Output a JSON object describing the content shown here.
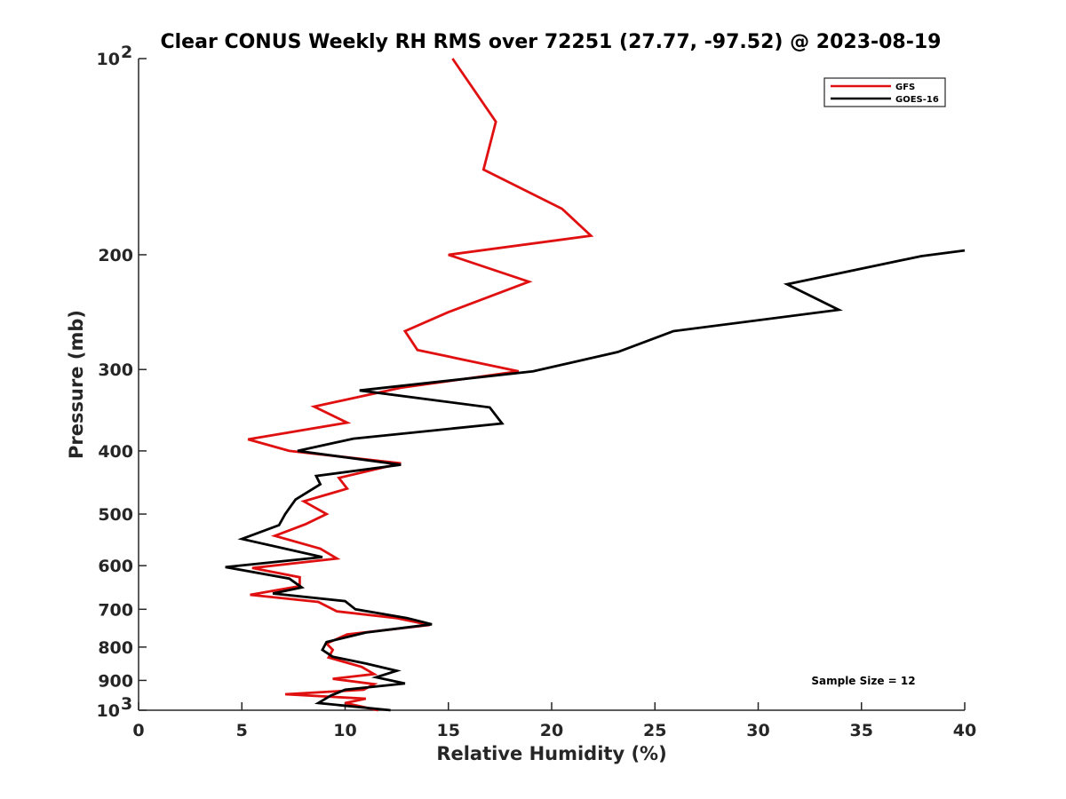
{
  "chart_data": {
    "type": "line",
    "title": "Clear CONUS Weekly RH RMS over 72251 (27.77, -97.52) @ 2023-08-19",
    "xlabel": "Relative Humidity (%)",
    "ylabel": "Pressure (mb)",
    "xlim": [
      0,
      40
    ],
    "ylim": [
      100,
      1000
    ],
    "y_scale": "log",
    "y_reversed": true,
    "grid": false,
    "legend_position": "top-right",
    "annotation": "Sample Size = 12",
    "x_ticks": [
      "0",
      "5",
      "10",
      "15",
      "20",
      "25",
      "30",
      "35",
      "40"
    ],
    "x_tick_values": [
      0,
      5,
      10,
      15,
      20,
      25,
      30,
      35,
      40
    ],
    "y_ticks": [
      {
        "value": 100,
        "label": "10",
        "exp": "2"
      },
      {
        "value": 200,
        "label": "200"
      },
      {
        "value": 300,
        "label": "300"
      },
      {
        "value": 400,
        "label": "400"
      },
      {
        "value": 500,
        "label": "500"
      },
      {
        "value": 600,
        "label": "600"
      },
      {
        "value": 700,
        "label": "700"
      },
      {
        "value": 800,
        "label": "800"
      },
      {
        "value": 900,
        "label": "900"
      },
      {
        "value": 1000,
        "label": "10",
        "exp": "3"
      }
    ],
    "series": [
      {
        "name": "GFS",
        "color": "#e01010",
        "points": [
          [
            15.2,
            100
          ],
          [
            17.3,
            125
          ],
          [
            16.7,
            148
          ],
          [
            20.5,
            170
          ],
          [
            21.9,
            187
          ],
          [
            15.0,
            200
          ],
          [
            18.9,
            220
          ],
          [
            15.0,
            245
          ],
          [
            12.9,
            262
          ],
          [
            13.5,
            280
          ],
          [
            18.4,
            302
          ],
          [
            12.7,
            320
          ],
          [
            8.5,
            342
          ],
          [
            10.1,
            362
          ],
          [
            5.3,
            384
          ],
          [
            7.3,
            400
          ],
          [
            12.7,
            418
          ],
          [
            9.7,
            440
          ],
          [
            10.1,
            457
          ],
          [
            8.0,
            478
          ],
          [
            9.1,
            500
          ],
          [
            8.1,
            518
          ],
          [
            6.6,
            540
          ],
          [
            8.8,
            565
          ],
          [
            9.6,
            585
          ],
          [
            5.5,
            605
          ],
          [
            7.8,
            625
          ],
          [
            7.8,
            645
          ],
          [
            5.4,
            665
          ],
          [
            8.7,
            682
          ],
          [
            9.6,
            705
          ],
          [
            12.5,
            722
          ],
          [
            14.1,
            740
          ],
          [
            10.1,
            765
          ],
          [
            9.1,
            790
          ],
          [
            9.4,
            808
          ],
          [
            9.2,
            830
          ],
          [
            10.8,
            858
          ],
          [
            11.4,
            880
          ],
          [
            9.4,
            895
          ],
          [
            11.4,
            912
          ],
          [
            10.9,
            930
          ],
          [
            7.1,
            945
          ],
          [
            11.0,
            960
          ],
          [
            10.0,
            975
          ],
          [
            11.6,
            1000
          ]
        ]
      },
      {
        "name": "GOES-16",
        "color": "#000000",
        "points": [
          [
            40.0,
            197
          ],
          [
            37.9,
            201
          ],
          [
            31.4,
            222
          ],
          [
            33.9,
            243
          ],
          [
            25.9,
            262
          ],
          [
            23.2,
            282
          ],
          [
            19.1,
            302
          ],
          [
            10.7,
            323
          ],
          [
            17.0,
            343
          ],
          [
            17.6,
            363
          ],
          [
            10.4,
            383
          ],
          [
            7.7,
            400
          ],
          [
            12.7,
            420
          ],
          [
            8.6,
            437
          ],
          [
            8.8,
            450
          ],
          [
            7.6,
            475
          ],
          [
            7.1,
            500
          ],
          [
            6.8,
            520
          ],
          [
            5.0,
            546
          ],
          [
            8.9,
            582
          ],
          [
            4.2,
            603
          ],
          [
            7.3,
            628
          ],
          [
            7.9,
            648
          ],
          [
            6.5,
            662
          ],
          [
            10.0,
            680
          ],
          [
            10.5,
            700
          ],
          [
            13.0,
            722
          ],
          [
            14.2,
            738
          ],
          [
            11.0,
            760
          ],
          [
            9.1,
            786
          ],
          [
            8.9,
            808
          ],
          [
            9.4,
            828
          ],
          [
            11.0,
            848
          ],
          [
            12.5,
            870
          ],
          [
            11.5,
            890
          ],
          [
            12.9,
            910
          ],
          [
            10.0,
            930
          ],
          [
            9.3,
            950
          ],
          [
            8.7,
            975
          ],
          [
            12.2,
            1000
          ]
        ]
      }
    ]
  }
}
